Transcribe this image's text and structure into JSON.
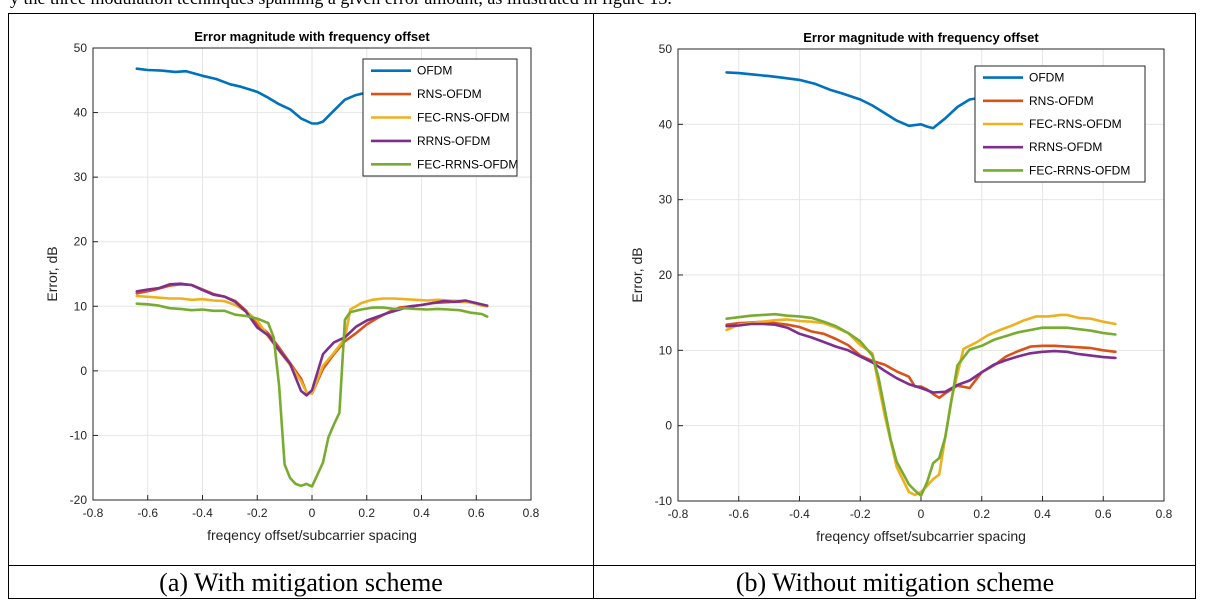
{
  "top_text": "y the three modulation techniques spanning a given error amount, as illustrated in figure 13.",
  "captions": [
    "(a) With mitigation scheme",
    "(b) Without mitigation scheme"
  ],
  "colors": {
    "OFDM": "#0072BD",
    "RNS-OFDM": "#D95319",
    "FEC-RNS-OFDM": "#EDB120",
    "RRNS-OFDM": "#7E2F8E",
    "FEC-RRNS-OFDM": "#77AC30"
  },
  "chart_data": [
    {
      "type": "line",
      "title": "Error magnitude with frequency offset",
      "xlabel": "freqency offset/subcarrier spacing",
      "ylabel": "Error, dB",
      "xlim": [
        -0.8,
        0.8
      ],
      "ylim": [
        -20,
        50
      ],
      "xticks": [
        "-0.8",
        "-0.6",
        "-0.4",
        "-0.2",
        "0",
        "0.2",
        "0.4",
        "0.6",
        "0.8"
      ],
      "yticks": [
        "-20",
        "-10",
        "0",
        "10",
        "20",
        "30",
        "40",
        "50"
      ],
      "grid": true,
      "legend_position": "top-right",
      "series": [
        {
          "name": "OFDM",
          "x": [
            -0.64,
            -0.6,
            -0.55,
            -0.5,
            -0.46,
            -0.4,
            -0.35,
            -0.3,
            -0.26,
            -0.2,
            -0.16,
            -0.12,
            -0.08,
            -0.04,
            0,
            0.02,
            0.04,
            0.08,
            0.12,
            0.16,
            0.19
          ],
          "y": [
            46.8,
            46.6,
            46.5,
            46.3,
            46.4,
            45.7,
            45.2,
            44.4,
            44,
            43.2,
            42.3,
            41.3,
            40.5,
            39.1,
            38.3,
            38.3,
            38.6,
            40.3,
            42,
            42.7,
            43
          ]
        },
        {
          "name": "RNS-OFDM",
          "x": [
            -0.64,
            -0.58,
            -0.52,
            -0.48,
            -0.44,
            -0.4,
            -0.36,
            -0.32,
            -0.28,
            -0.24,
            -0.2,
            -0.16,
            -0.12,
            -0.08,
            -0.04,
            -0.02,
            0,
            0.04,
            0.08,
            0.12,
            0.16,
            0.2,
            0.24,
            0.28,
            0.32,
            0.36,
            0.4,
            0.44,
            0.48,
            0.52,
            0.56,
            0.6,
            0.64
          ],
          "y": [
            12,
            12.5,
            13.2,
            13.4,
            13.3,
            12.6,
            11.9,
            11.5,
            10.8,
            9.3,
            7.2,
            5.8,
            3.6,
            1.2,
            -1.2,
            -3.3,
            -3.5,
            0.3,
            2.6,
            4.6,
            5.8,
            7.2,
            8.2,
            9.1,
            9.8,
            10,
            10.2,
            10.5,
            10.6,
            10.7,
            10.7,
            10.5,
            10
          ]
        },
        {
          "name": "FEC-RNS-OFDM",
          "x": [
            -0.64,
            -0.58,
            -0.52,
            -0.48,
            -0.44,
            -0.4,
            -0.36,
            -0.32,
            -0.28,
            -0.24,
            -0.2,
            -0.16,
            -0.12,
            -0.08,
            -0.04,
            -0.02,
            0,
            0.04,
            0.08,
            0.12,
            0.14,
            0.18,
            0.22,
            0.26,
            0.3,
            0.34,
            0.38,
            0.42,
            0.46,
            0.5,
            0.54,
            0.58,
            0.62,
            0.64
          ],
          "y": [
            11.6,
            11.4,
            11.2,
            11.2,
            11,
            11.1,
            10.9,
            10.8,
            10.2,
            9.2,
            7.8,
            5.3,
            3.1,
            0.9,
            -1.6,
            -3.3,
            -3.5,
            0.8,
            2.8,
            5,
            9.5,
            10.5,
            11,
            11.2,
            11.2,
            11.1,
            11,
            10.9,
            11,
            10.9,
            10.8,
            10.6,
            10.1,
            10
          ]
        },
        {
          "name": "RRNS-OFDM",
          "x": [
            -0.64,
            -0.6,
            -0.56,
            -0.52,
            -0.48,
            -0.44,
            -0.4,
            -0.36,
            -0.32,
            -0.28,
            -0.24,
            -0.2,
            -0.16,
            -0.12,
            -0.08,
            -0.04,
            -0.02,
            0,
            0.04,
            0.08,
            0.12,
            0.16,
            0.2,
            0.24,
            0.28,
            0.32,
            0.36,
            0.4,
            0.44,
            0.48,
            0.52,
            0.56,
            0.6,
            0.64
          ],
          "y": [
            12.3,
            12.6,
            12.8,
            13.4,
            13.5,
            13.3,
            12.5,
            11.8,
            11.5,
            10.7,
            9.1,
            6.7,
            5.5,
            3.2,
            1.1,
            -3.1,
            -3.8,
            -3,
            2.6,
            4.4,
            5.2,
            6.8,
            7.8,
            8.4,
            9,
            9.5,
            10,
            10.2,
            10.5,
            10.8,
            10.7,
            10.9,
            10.5,
            10.1
          ]
        },
        {
          "name": "FEC-RRNS-OFDM",
          "x": [
            -0.64,
            -0.6,
            -0.56,
            -0.52,
            -0.48,
            -0.44,
            -0.4,
            -0.36,
            -0.32,
            -0.28,
            -0.24,
            -0.2,
            -0.16,
            -0.14,
            -0.12,
            -0.1,
            -0.08,
            -0.06,
            -0.04,
            -0.02,
            0,
            0.04,
            0.06,
            0.08,
            0.1,
            0.12,
            0.14,
            0.18,
            0.22,
            0.26,
            0.3,
            0.34,
            0.38,
            0.42,
            0.46,
            0.5,
            0.54,
            0.58,
            0.62,
            0.64
          ],
          "y": [
            10.4,
            10.3,
            10.1,
            9.7,
            9.6,
            9.4,
            9.5,
            9.3,
            9.3,
            8.7,
            8.5,
            8.1,
            7.4,
            5.2,
            -2.3,
            -14.5,
            -16.6,
            -17.5,
            -17.8,
            -17.5,
            -17.9,
            -14.2,
            -10.3,
            -8.3,
            -6.5,
            7.9,
            9.1,
            9.5,
            9.8,
            9.8,
            9.6,
            9.7,
            9.6,
            9.5,
            9.6,
            9.5,
            9.4,
            9,
            8.8,
            8.4
          ]
        }
      ]
    },
    {
      "type": "line",
      "title": "Error magnitude with frequency offset",
      "xlabel": "freqency offset/subcarrier spacing",
      "ylabel": "Error, dB",
      "xlim": [
        -0.8,
        0.8
      ],
      "ylim": [
        -10,
        50
      ],
      "xticks": [
        "-0.8",
        "-0.6",
        "-0.4",
        "-0.2",
        "0",
        "0.2",
        "0.4",
        "0.6",
        "0.8"
      ],
      "yticks": [
        "-10",
        "0",
        "10",
        "20",
        "30",
        "40",
        "50"
      ],
      "grid": true,
      "legend_position": "top-right",
      "series": [
        {
          "name": "OFDM",
          "x": [
            -0.64,
            -0.6,
            -0.55,
            -0.5,
            -0.46,
            -0.4,
            -0.35,
            -0.3,
            -0.26,
            -0.2,
            -0.16,
            -0.12,
            -0.08,
            -0.04,
            0,
            0.02,
            0.04,
            0.08,
            0.12,
            0.16,
            0.19
          ],
          "y": [
            46.9,
            46.8,
            46.6,
            46.4,
            46.2,
            45.9,
            45.4,
            44.6,
            44.1,
            43.3,
            42.5,
            41.5,
            40.5,
            39.8,
            40,
            39.7,
            39.5,
            40.8,
            42.3,
            43.3,
            43.5
          ]
        },
        {
          "name": "RNS-OFDM",
          "x": [
            -0.64,
            -0.6,
            -0.56,
            -0.52,
            -0.48,
            -0.44,
            -0.4,
            -0.36,
            -0.32,
            -0.28,
            -0.24,
            -0.2,
            -0.16,
            -0.12,
            -0.08,
            -0.04,
            -0.02,
            0,
            0.02,
            0.04,
            0.06,
            0.08,
            0.12,
            0.16,
            0.2,
            0.24,
            0.28,
            0.32,
            0.36,
            0.4,
            0.44,
            0.48,
            0.52,
            0.56,
            0.6,
            0.64
          ],
          "y": [
            13.4,
            13.6,
            13.7,
            13.8,
            13.6,
            13.4,
            13.1,
            12.5,
            12.2,
            11.5,
            10.7,
            9.3,
            8.6,
            8.1,
            7.2,
            6.5,
            5.2,
            5.2,
            4.8,
            4.2,
            3.7,
            4.3,
            5.3,
            5,
            7.1,
            8,
            9.2,
            9.9,
            10.5,
            10.6,
            10.6,
            10.5,
            10.4,
            10.3,
            10,
            9.8
          ]
        },
        {
          "name": "FEC-RNS-OFDM",
          "x": [
            -0.64,
            -0.6,
            -0.56,
            -0.52,
            -0.48,
            -0.44,
            -0.4,
            -0.36,
            -0.32,
            -0.28,
            -0.24,
            -0.2,
            -0.16,
            -0.12,
            -0.1,
            -0.08,
            -0.04,
            -0.02,
            0,
            0.02,
            0.04,
            0.06,
            0.1,
            0.14,
            0.18,
            0.22,
            0.26,
            0.3,
            0.34,
            0.38,
            0.42,
            0.46,
            0.48,
            0.52,
            0.56,
            0.6,
            0.64
          ],
          "y": [
            12.7,
            13.4,
            13.6,
            13.8,
            14,
            14.1,
            13.9,
            13.8,
            13.6,
            13,
            12.3,
            10.7,
            9.6,
            1.5,
            -2,
            -5.5,
            -8.8,
            -9.2,
            -8.8,
            -8,
            -7.1,
            -6.5,
            3.5,
            10.2,
            11,
            12,
            12.7,
            13.3,
            14,
            14.5,
            14.5,
            14.7,
            14.7,
            14.3,
            14.2,
            13.8,
            13.5
          ]
        },
        {
          "name": "RRNS-OFDM",
          "x": [
            -0.64,
            -0.6,
            -0.56,
            -0.52,
            -0.48,
            -0.44,
            -0.4,
            -0.36,
            -0.32,
            -0.28,
            -0.24,
            -0.2,
            -0.16,
            -0.12,
            -0.08,
            -0.04,
            0,
            0.04,
            0.08,
            0.12,
            0.16,
            0.2,
            0.24,
            0.28,
            0.32,
            0.36,
            0.4,
            0.44,
            0.48,
            0.52,
            0.56,
            0.6,
            0.64
          ],
          "y": [
            13.2,
            13.3,
            13.5,
            13.5,
            13.4,
            13,
            12.2,
            11.7,
            11.1,
            10.5,
            10,
            9.2,
            8.4,
            7.3,
            6.3,
            5.5,
            5,
            4.4,
            4.5,
            5.4,
            6,
            7.1,
            8.1,
            8.7,
            9.2,
            9.6,
            9.8,
            9.9,
            9.8,
            9.5,
            9.3,
            9.1,
            9
          ]
        },
        {
          "name": "FEC-RRNS-OFDM",
          "x": [
            -0.64,
            -0.6,
            -0.56,
            -0.52,
            -0.48,
            -0.44,
            -0.4,
            -0.36,
            -0.32,
            -0.28,
            -0.24,
            -0.2,
            -0.16,
            -0.14,
            -0.1,
            -0.08,
            -0.04,
            -0.02,
            0,
            0.02,
            0.04,
            0.06,
            0.08,
            0.12,
            0.16,
            0.2,
            0.24,
            0.28,
            0.32,
            0.36,
            0.4,
            0.44,
            0.48,
            0.52,
            0.56,
            0.6,
            0.64
          ],
          "y": [
            14.2,
            14.4,
            14.6,
            14.7,
            14.8,
            14.6,
            14.5,
            14.3,
            13.8,
            13.2,
            12.3,
            11.2,
            9.3,
            6.4,
            -1.8,
            -4.8,
            -7.8,
            -8.6,
            -9.3,
            -7.5,
            -5,
            -4.3,
            -1.5,
            8,
            10.1,
            10.6,
            11.4,
            11.9,
            12.4,
            12.7,
            13,
            13,
            13,
            12.8,
            12.6,
            12.3,
            12.1
          ]
        }
      ]
    }
  ]
}
